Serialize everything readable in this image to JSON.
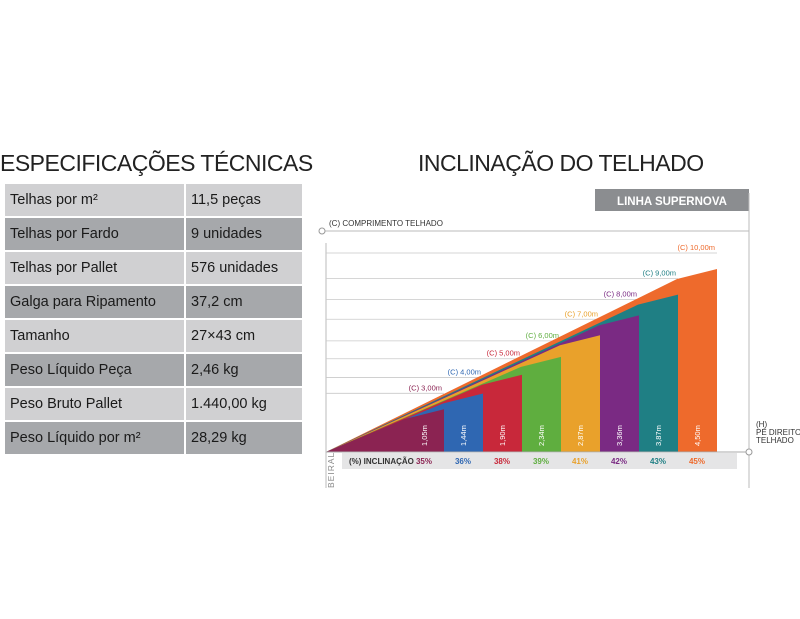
{
  "specs": {
    "title": "ESPECIFICAÇÕES TÉCNICAS",
    "rows": [
      {
        "label": "Telhas por m²",
        "value": "11,5 peças"
      },
      {
        "label": "Telhas por Fardo",
        "value": "9 unidades"
      },
      {
        "label": "Telhas por Pallet",
        "value": "576 unidades"
      },
      {
        "label": "Galga para Ripamento",
        "value": "37,2 cm"
      },
      {
        "label": "Tamanho",
        "value": "27×43 cm"
      },
      {
        "label": "Peso Líquido Peça",
        "value": "2,46 kg"
      },
      {
        "label": "Peso Bruto Pallet",
        "value": "1.440,00 kg"
      },
      {
        "label": "Peso Líquido por m²",
        "value": "28,29 kg"
      }
    ]
  },
  "chart_data": {
    "type": "bar",
    "title": "INCLINAÇÃO DO TELHADO",
    "badge": "LINHA SUPERNOVA",
    "top_label": "(C) COMPRIMENTO TELHADO",
    "right_label_line1": "(H)",
    "right_label_line2": "PÉ DIREITO",
    "right_label_line3": "TELHADO",
    "left_label": "BEIRAL",
    "axis_label": "(%) INCLINAÇÃO",
    "unit": "m",
    "ylim": [
      0,
      4.5
    ],
    "series": [
      {
        "length": "(C) 3,00m",
        "height": 1.05,
        "height_label": "1,05m",
        "incline": "35%",
        "color": "#8b2352"
      },
      {
        "length": "(C) 4,00m",
        "height": 1.44,
        "height_label": "1,44m",
        "incline": "36%",
        "color": "#2f67b2"
      },
      {
        "length": "(C) 5,00m",
        "height": 1.9,
        "height_label": "1,90m",
        "incline": "38%",
        "color": "#c8283a"
      },
      {
        "length": "(C) 6,00m",
        "height": 2.34,
        "height_label": "2,34m",
        "incline": "39%",
        "color": "#5fae3f"
      },
      {
        "length": "(C) 7,00m",
        "height": 2.87,
        "height_label": "2,87m",
        "incline": "41%",
        "color": "#e9a12b"
      },
      {
        "length": "(C) 8,00m",
        "height": 3.36,
        "height_label": "3,36m",
        "incline": "42%",
        "color": "#7a2a83"
      },
      {
        "length": "(C) 9,00m",
        "height": 3.87,
        "height_label": "3,87m",
        "incline": "43%",
        "color": "#1f7f84"
      },
      {
        "length": "(C) 10,00m",
        "height": 4.5,
        "height_label": "4,50m",
        "incline": "45%",
        "color": "#ee6a2c"
      }
    ]
  }
}
